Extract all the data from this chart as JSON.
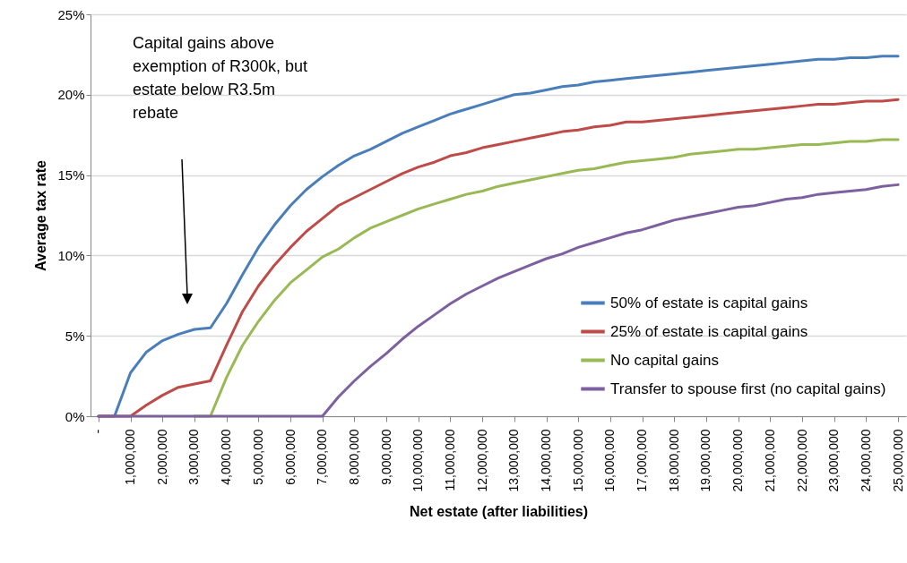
{
  "chart_data": {
    "type": "line",
    "xlabel": "Net estate (after liabilities)",
    "ylabel": "Average tax rate",
    "annotations": [
      "Capital gains above\nexemption of R300k, but\nestate below R3.5m\nrebate"
    ],
    "x": [
      0,
      500000,
      1000000,
      1500000,
      2000000,
      2500000,
      3000000,
      3500000,
      4000000,
      4500000,
      5000000,
      5500000,
      6000000,
      6500000,
      7000000,
      7500000,
      8000000,
      8500000,
      9000000,
      9500000,
      10000000,
      10500000,
      11000000,
      11500000,
      12000000,
      12500000,
      13000000,
      13500000,
      14000000,
      14500000,
      15000000,
      15500000,
      16000000,
      16500000,
      17000000,
      17500000,
      18000000,
      18500000,
      19000000,
      19500000,
      20000000,
      20500000,
      21000000,
      21500000,
      22000000,
      22500000,
      23000000,
      23500000,
      24000000,
      24500000,
      25000000
    ],
    "series": [
      {
        "name": "50% of estate is capital gains",
        "color": "#4a7ebb",
        "values": [
          0,
          0,
          2.7,
          4.0,
          4.7,
          5.1,
          5.4,
          5.5,
          7.0,
          8.8,
          10.5,
          11.9,
          13.1,
          14.1,
          14.9,
          15.6,
          16.2,
          16.6,
          17.1,
          17.6,
          18.0,
          18.4,
          18.8,
          19.1,
          19.4,
          19.7,
          20.0,
          20.1,
          20.3,
          20.5,
          20.6,
          20.8,
          20.9,
          21.0,
          21.1,
          21.2,
          21.3,
          21.4,
          21.5,
          21.6,
          21.7,
          21.8,
          21.9,
          22.0,
          22.1,
          22.2,
          22.2,
          22.3,
          22.3,
          22.4,
          22.4
        ]
      },
      {
        "name": "25% of estate is capital gains",
        "color": "#be4b48",
        "values": [
          0,
          0,
          0,
          0.7,
          1.3,
          1.8,
          2.0,
          2.2,
          4.4,
          6.5,
          8.1,
          9.4,
          10.5,
          11.5,
          12.3,
          13.1,
          13.6,
          14.1,
          14.6,
          15.1,
          15.5,
          15.8,
          16.2,
          16.4,
          16.7,
          16.9,
          17.1,
          17.3,
          17.5,
          17.7,
          17.8,
          18.0,
          18.1,
          18.3,
          18.3,
          18.4,
          18.5,
          18.6,
          18.7,
          18.8,
          18.9,
          19.0,
          19.1,
          19.2,
          19.3,
          19.4,
          19.4,
          19.5,
          19.6,
          19.6,
          19.7
        ]
      },
      {
        "name": "No capital gains",
        "color": "#98b954",
        "values": [
          null,
          null,
          null,
          null,
          null,
          null,
          0,
          0,
          2.4,
          4.4,
          5.9,
          7.2,
          8.3,
          9.1,
          9.9,
          10.4,
          11.1,
          11.7,
          12.1,
          12.5,
          12.9,
          13.2,
          13.5,
          13.8,
          14.0,
          14.3,
          14.5,
          14.7,
          14.9,
          15.1,
          15.3,
          15.4,
          15.6,
          15.8,
          15.9,
          16.0,
          16.1,
          16.3,
          16.4,
          16.5,
          16.6,
          16.6,
          16.7,
          16.8,
          16.9,
          16.9,
          17.0,
          17.1,
          17.1,
          17.2,
          17.2
        ]
      },
      {
        "name": "Transfer to spouse first (no capital gains)",
        "color": "#7d60a0",
        "values": [
          0,
          0,
          0,
          0,
          0,
          0,
          0,
          0,
          0,
          0,
          0,
          0,
          0,
          0,
          0,
          1.2,
          2.2,
          3.1,
          3.9,
          4.8,
          5.6,
          6.3,
          7.0,
          7.6,
          8.1,
          8.6,
          9.0,
          9.4,
          9.8,
          10.1,
          10.5,
          10.8,
          11.1,
          11.4,
          11.6,
          11.9,
          12.2,
          12.4,
          12.6,
          12.8,
          13.0,
          13.1,
          13.3,
          13.5,
          13.6,
          13.8,
          13.9,
          14.0,
          14.1,
          14.3,
          14.4
        ]
      }
    ],
    "xlim": [
      -250000,
      25250000
    ],
    "xticks": [
      {
        "value": 0,
        "label": "-"
      },
      {
        "value": 1000000,
        "label": "1,000,000"
      },
      {
        "value": 2000000,
        "label": "2,000,000"
      },
      {
        "value": 3000000,
        "label": "3,000,000"
      },
      {
        "value": 4000000,
        "label": "4,000,000"
      },
      {
        "value": 5000000,
        "label": "5,000,000"
      },
      {
        "value": 6000000,
        "label": "6,000,000"
      },
      {
        "value": 7000000,
        "label": "7,000,000"
      },
      {
        "value": 8000000,
        "label": "8,000,000"
      },
      {
        "value": 9000000,
        "label": "9,000,000"
      },
      {
        "value": 10000000,
        "label": "10,000,000"
      },
      {
        "value": 11000000,
        "label": "11,000,000"
      },
      {
        "value": 12000000,
        "label": "12,000,000"
      },
      {
        "value": 13000000,
        "label": "13,000,000"
      },
      {
        "value": 14000000,
        "label": "14,000,000"
      },
      {
        "value": 15000000,
        "label": "15,000,000"
      },
      {
        "value": 16000000,
        "label": "16,000,000"
      },
      {
        "value": 17000000,
        "label": "17,000,000"
      },
      {
        "value": 18000000,
        "label": "18,000,000"
      },
      {
        "value": 19000000,
        "label": "19,000,000"
      },
      {
        "value": 20000000,
        "label": "20,000,000"
      },
      {
        "value": 21000000,
        "label": "21,000,000"
      },
      {
        "value": 22000000,
        "label": "22,000,000"
      },
      {
        "value": 23000000,
        "label": "23,000,000"
      },
      {
        "value": 24000000,
        "label": "24,000,000"
      },
      {
        "value": 25000000,
        "label": "25,000,000"
      }
    ],
    "ylim": [
      0,
      25
    ],
    "yticks": [
      {
        "value": 0,
        "label": "0%"
      },
      {
        "value": 5,
        "label": "5%"
      },
      {
        "value": 10,
        "label": "10%"
      },
      {
        "value": 15,
        "label": "15%"
      },
      {
        "value": 20,
        "label": "20%"
      },
      {
        "value": 25,
        "label": "25%"
      }
    ],
    "grid": "y",
    "legend": "bottom right",
    "marker": "none",
    "line_style": "solid"
  }
}
